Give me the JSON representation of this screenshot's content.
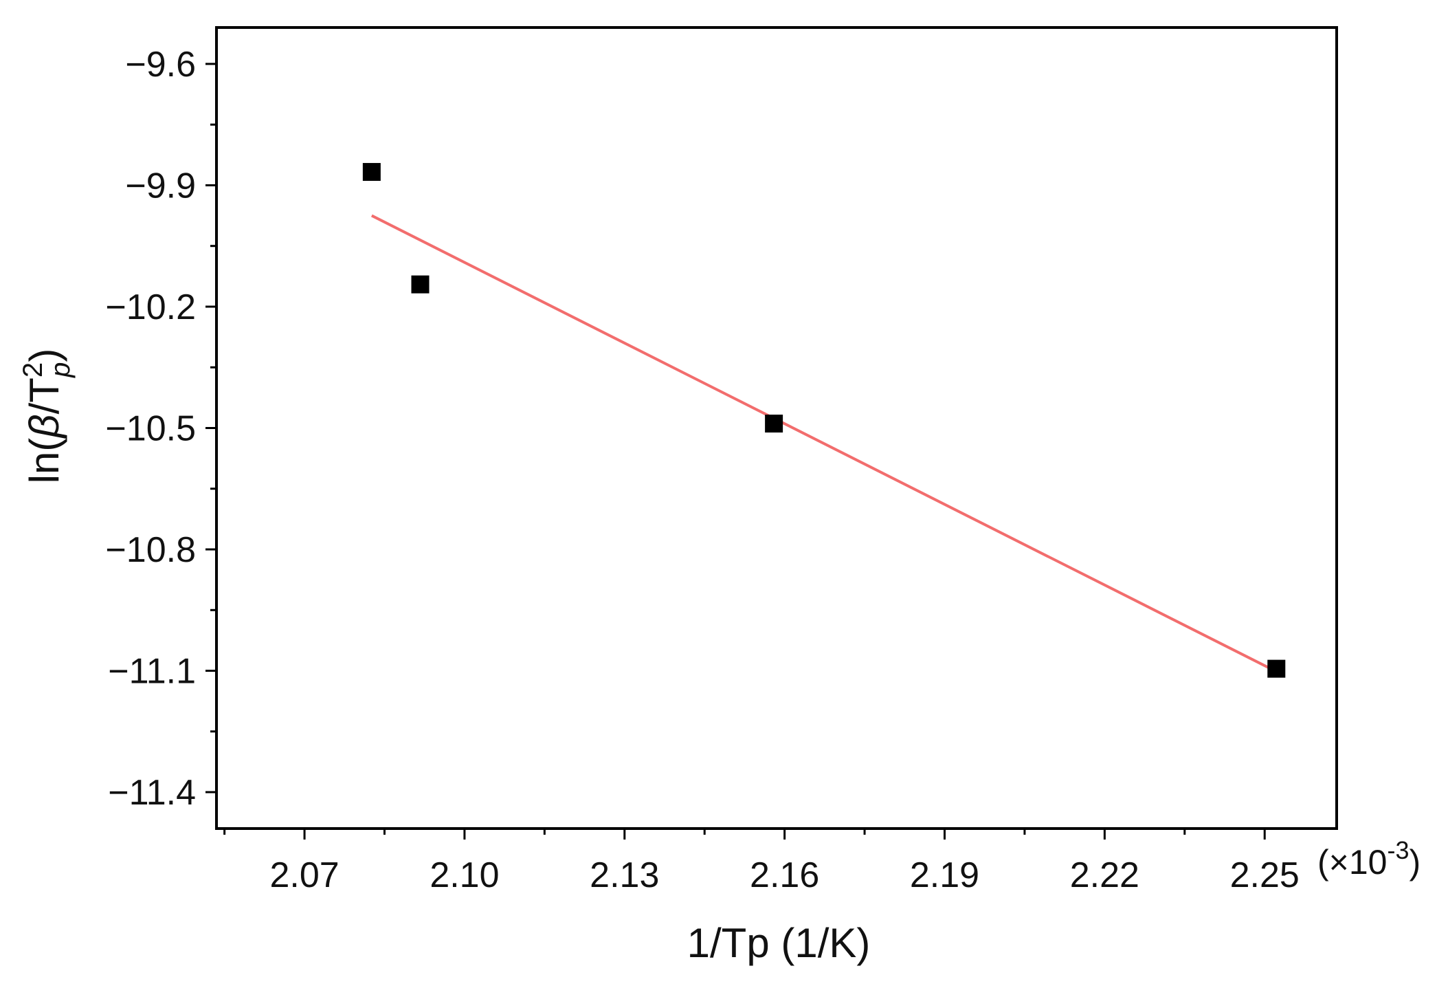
{
  "chart_data": {
    "type": "scatter",
    "title": "",
    "xlabel": "1/Tp (1/K)",
    "ylabel": {
      "prefix": "ln(",
      "beta": "β",
      "slash_t": "/T",
      "superscript": "2",
      "subscript": "p",
      "suffix": ")"
    },
    "x_multiplier": {
      "text": "(×10",
      "exponent": "-3",
      "close": ")"
    },
    "xlim": [
      2.0535,
      2.2635
    ],
    "ylim": [
      -11.49,
      -9.51
    ],
    "x_ticks": [
      2.07,
      2.1,
      2.13,
      2.16,
      2.19,
      2.22,
      2.25
    ],
    "x_tick_labels": [
      "2.07",
      "2.10",
      "2.13",
      "2.16",
      "2.19",
      "2.22",
      "2.25"
    ],
    "y_ticks": [
      -9.6,
      -9.9,
      -10.2,
      -10.5,
      -10.8,
      -11.1,
      -11.4
    ],
    "y_tick_labels": [
      "−9.6",
      "−9.9",
      "−10.2",
      "−10.5",
      "−10.8",
      "−11.1",
      "−11.4"
    ],
    "x_minor_ticks": [
      2.055,
      2.085,
      2.115,
      2.145,
      2.175,
      2.205,
      2.235
    ],
    "y_minor_ticks": [
      -9.75,
      -10.05,
      -10.35,
      -10.65,
      -10.95,
      -11.25
    ],
    "grid": false,
    "series": [
      {
        "kind": "points",
        "marker": "square",
        "color": "#000000",
        "points": [
          {
            "x": 2.0826,
            "y": -9.867
          },
          {
            "x": 2.0917,
            "y": -10.145
          },
          {
            "x": 2.158,
            "y": -10.489
          },
          {
            "x": 2.2522,
            "y": -11.095
          }
        ]
      },
      {
        "kind": "line",
        "color": "#f26d6d",
        "points": [
          {
            "x": 2.0826,
            "y": -9.975
          },
          {
            "x": 2.2522,
            "y": -11.102
          }
        ]
      }
    ]
  }
}
